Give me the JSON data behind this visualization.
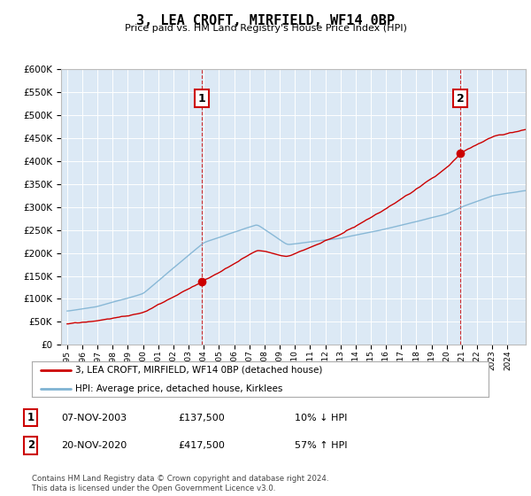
{
  "title": "3, LEA CROFT, MIRFIELD, WF14 0BP",
  "subtitle": "Price paid vs. HM Land Registry's House Price Index (HPI)",
  "plot_bg_color": "#dce9f5",
  "red_line_color": "#cc0000",
  "blue_line_color": "#7fb3d3",
  "sale1_x": 2003.88,
  "sale1_y": 137500,
  "sale2_x": 2020.88,
  "sale2_y": 417500,
  "legend_line1": "3, LEA CROFT, MIRFIELD, WF14 0BP (detached house)",
  "legend_line2": "HPI: Average price, detached house, Kirklees",
  "note1_date": "07-NOV-2003",
  "note1_price": "£137,500",
  "note1_hpi": "10% ↓ HPI",
  "note2_date": "20-NOV-2020",
  "note2_price": "£417,500",
  "note2_hpi": "57% ↑ HPI",
  "footer": "Contains HM Land Registry data © Crown copyright and database right 2024.\nThis data is licensed under the Open Government Licence v3.0.",
  "ylim": [
    0,
    600000
  ],
  "xlim_start": 1994.6,
  "xlim_end": 2025.2
}
